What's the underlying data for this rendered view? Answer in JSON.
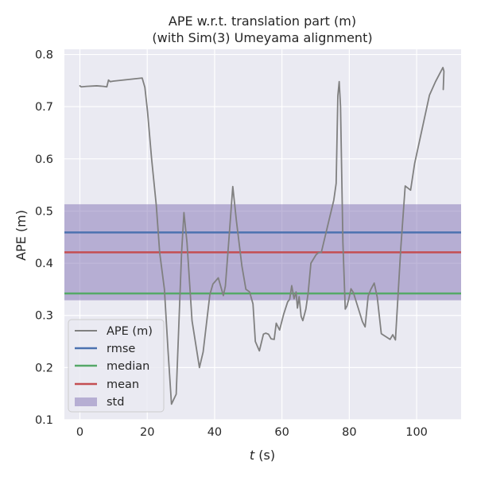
{
  "chart_data": {
    "type": "line",
    "title": "APE w.r.t. translation part (m)",
    "subtitle": "(with Sim(3) Umeyama alignment)",
    "xlabel_italic": "t",
    "xlabel_rest": " (s)",
    "ylabel": "APE (m)",
    "xlim": [
      -4.6,
      113.2
    ],
    "ylim": [
      0.1,
      0.81
    ],
    "xticks": [
      0,
      20,
      40,
      60,
      80,
      100
    ],
    "yticks": [
      0.1,
      0.2,
      0.3,
      0.4,
      0.5,
      0.6,
      0.7,
      0.8
    ],
    "xtick_labels": [
      "0",
      "20",
      "40",
      "60",
      "80",
      "100"
    ],
    "ytick_labels": [
      "0.1",
      "0.2",
      "0.3",
      "0.4",
      "0.5",
      "0.6",
      "0.7",
      "0.8"
    ],
    "grid": true,
    "legend_position": "lower-left",
    "background_color": "#eaeaf2",
    "series": [
      {
        "name": "APE (m)",
        "color": "#808080",
        "x": [
          0,
          0.4,
          2,
          5,
          7,
          8,
          8.5,
          9,
          10,
          18.5,
          19.3,
          20.1,
          21.3,
          22.7,
          23.7,
          25.1,
          26.2,
          27.2,
          28.6,
          30.2,
          30.9,
          31.8,
          33.3,
          35.5,
          36.6,
          38.6,
          39.5,
          41.1,
          42.6,
          43.2,
          44.3,
          45.4,
          46.5,
          48.1,
          49.3,
          50.4,
          51.4,
          52.1,
          53.3,
          54.5,
          55.2,
          56.0,
          56.8,
          57.7,
          58.3,
          59.3,
          60.5,
          61.7,
          62.3,
          62.9,
          63.6,
          64.2,
          64.6,
          65.1,
          65.7,
          66.2,
          67.1,
          67.8,
          68.6,
          70.1,
          70.8,
          71.7,
          75.4,
          76.1,
          76.6,
          77.0,
          77.4,
          78.1,
          78.8,
          79.3,
          79.8,
          80.5,
          81.2,
          83.9,
          84.7,
          85.6,
          86.4,
          87.4,
          88.3,
          89.5,
          92.1,
          92.9,
          93.7,
          95.3,
          96.6,
          98.2,
          99.4,
          103.8,
          105.6,
          107.8,
          108.1,
          107.9
        ],
        "y": [
          0.74,
          0.738,
          0.739,
          0.74,
          0.739,
          0.738,
          0.751,
          0.748,
          0.749,
          0.755,
          0.737,
          0.69,
          0.6,
          0.51,
          0.42,
          0.35,
          0.23,
          0.13,
          0.149,
          0.42,
          0.497,
          0.44,
          0.29,
          0.2,
          0.23,
          0.34,
          0.36,
          0.372,
          0.338,
          0.356,
          0.45,
          0.547,
          0.48,
          0.395,
          0.35,
          0.345,
          0.322,
          0.25,
          0.232,
          0.264,
          0.266,
          0.264,
          0.255,
          0.254,
          0.285,
          0.272,
          0.302,
          0.326,
          0.331,
          0.357,
          0.332,
          0.345,
          0.314,
          0.336,
          0.298,
          0.29,
          0.312,
          0.344,
          0.4,
          0.416,
          0.42,
          0.421,
          0.521,
          0.553,
          0.721,
          0.748,
          0.7,
          0.44,
          0.312,
          0.318,
          0.33,
          0.351,
          0.344,
          0.288,
          0.278,
          0.337,
          0.35,
          0.362,
          0.335,
          0.265,
          0.254,
          0.263,
          0.253,
          0.43,
          0.548,
          0.54,
          0.591,
          0.722,
          0.748,
          0.775,
          0.768,
          0.733
        ]
      }
    ],
    "reference_lines": [
      {
        "name": "rmse",
        "value": 0.459,
        "color": "#4c72b0"
      },
      {
        "name": "median",
        "value": 0.342,
        "color": "#55a868"
      },
      {
        "name": "mean",
        "value": 0.421,
        "color": "#c44e52"
      }
    ],
    "std_band": {
      "name": "std",
      "low": 0.329,
      "high": 0.513,
      "color": "#8172b3",
      "opacity": 0.5
    }
  }
}
